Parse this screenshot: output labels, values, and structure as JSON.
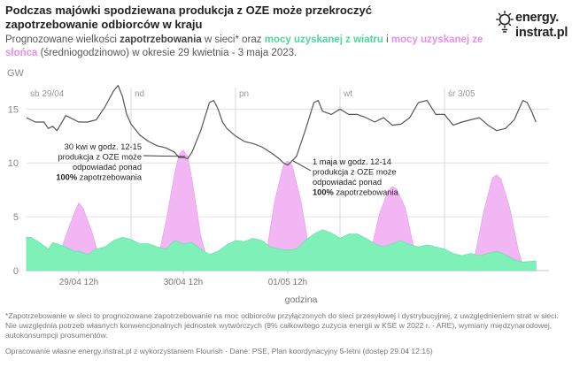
{
  "header": {
    "title": "Podczas majówki spodziewana produkcja z OZE może przekroczyć zapotrzebowanie odbiorców w kraju",
    "subtitle_1": "Prognozowane wielkości ",
    "subtitle_demand": "zapotrzebowania",
    "subtitle_2": " w sieci* oraz ",
    "subtitle_wind": "mocy uzyskanej z wiatru",
    "subtitle_3": " i ",
    "subtitle_solar": "mocy uzyskanej ze słońca",
    "subtitle_4": " (średniogodzinowo) w okresie 29 kwietnia - 3 maja 2023."
  },
  "logo": {
    "line1": "energy.",
    "line2": "instrat.pl",
    "icon": "lightbulb-sun-icon"
  },
  "colors": {
    "wind": "#7ef0b8",
    "solar": "#f3b6f5",
    "demand": "#555555",
    "grid": "#e0e0e0",
    "divider": "#d8d8d8"
  },
  "chart_data": {
    "type": "area",
    "ylabel": "GW",
    "xlabel": "godzina",
    "ylim": [
      0,
      17
    ],
    "y_ticks": [
      0,
      5,
      10,
      15
    ],
    "x_tick_labels": [
      {
        "label": "29/04 12h",
        "hour": 12
      },
      {
        "label": "30/04 12h",
        "hour": 36
      },
      {
        "label": "01/05 12h",
        "hour": 60
      }
    ],
    "day_labels": [
      {
        "label": "sb 29/04",
        "hour": 0
      },
      {
        "label": "nd",
        "hour": 24
      },
      {
        "label": "pn",
        "hour": 48
      },
      {
        "label": "wt",
        "hour": 72
      },
      {
        "label": "śr 3/05",
        "hour": 96
      }
    ],
    "hours_total": 120,
    "demand": {
      "name": "zapotrzebowanie",
      "points": [
        [
          0,
          14.2
        ],
        [
          2,
          13.8
        ],
        [
          4,
          13.8
        ],
        [
          5,
          13.2
        ],
        [
          6,
          13.4
        ],
        [
          7,
          13.0
        ],
        [
          9,
          14.4
        ],
        [
          10,
          14.2
        ],
        [
          12,
          13.8
        ],
        [
          14,
          13.8
        ],
        [
          16,
          14.0
        ],
        [
          18,
          15.2
        ],
        [
          20,
          16.7
        ],
        [
          21,
          17.2
        ],
        [
          22,
          16.2
        ],
        [
          23,
          14.5
        ],
        [
          24,
          13.6
        ],
        [
          26,
          12.6
        ],
        [
          28,
          12.0
        ],
        [
          30,
          11.6
        ],
        [
          32,
          11.4
        ],
        [
          34,
          11.0
        ],
        [
          35,
          10.5
        ],
        [
          36,
          10.5
        ],
        [
          37,
          10.4
        ],
        [
          38,
          11.0
        ],
        [
          40,
          13.0
        ],
        [
          42,
          15.6
        ],
        [
          43,
          15.8
        ],
        [
          44,
          15.0
        ],
        [
          45,
          13.8
        ],
        [
          46,
          13.2
        ],
        [
          48,
          12.5
        ],
        [
          50,
          12.0
        ],
        [
          52,
          11.8
        ],
        [
          54,
          11.5
        ],
        [
          56,
          11.0
        ],
        [
          58,
          10.4
        ],
        [
          59,
          10.0
        ],
        [
          60,
          9.8
        ],
        [
          62,
          10.6
        ],
        [
          64,
          13.0
        ],
        [
          66,
          15.6
        ],
        [
          67,
          15.8
        ],
        [
          68,
          14.8
        ],
        [
          70,
          14.5
        ],
        [
          72,
          15.0
        ],
        [
          74,
          14.5
        ],
        [
          76,
          14.5
        ],
        [
          78,
          14.2
        ],
        [
          80,
          13.8
        ],
        [
          82,
          14.2
        ],
        [
          84,
          13.5
        ],
        [
          86,
          13.6
        ],
        [
          88,
          14.2
        ],
        [
          90,
          15.6
        ],
        [
          92,
          15.8
        ],
        [
          94,
          14.5
        ],
        [
          96,
          14.5
        ],
        [
          98,
          13.5
        ],
        [
          100,
          13.8
        ],
        [
          102,
          14.0
        ],
        [
          104,
          14.2
        ],
        [
          106,
          13.5
        ],
        [
          108,
          13.0
        ],
        [
          110,
          13.2
        ],
        [
          112,
          14.0
        ],
        [
          114,
          15.8
        ],
        [
          115,
          15.6
        ],
        [
          116,
          14.8
        ],
        [
          117,
          13.8
        ]
      ]
    },
    "wind": {
      "name": "moc z wiatru",
      "points": [
        [
          0,
          3.1
        ],
        [
          1,
          3.1
        ],
        [
          3,
          2.6
        ],
        [
          5,
          2.0
        ],
        [
          6,
          2.6
        ],
        [
          7,
          2.5
        ],
        [
          9,
          2.2
        ],
        [
          11,
          1.8
        ],
        [
          12,
          1.8
        ],
        [
          14,
          1.5
        ],
        [
          16,
          2.0
        ],
        [
          18,
          2.2
        ],
        [
          20,
          2.8
        ],
        [
          22,
          3.1
        ],
        [
          24,
          2.9
        ],
        [
          26,
          2.5
        ],
        [
          28,
          2.5
        ],
        [
          30,
          2.2
        ],
        [
          32,
          2.0
        ],
        [
          34,
          2.8
        ],
        [
          36,
          2.5
        ],
        [
          38,
          2.6
        ],
        [
          40,
          2.0
        ],
        [
          42,
          1.5
        ],
        [
          44,
          1.8
        ],
        [
          46,
          2.4
        ],
        [
          48,
          2.8
        ],
        [
          50,
          2.7
        ],
        [
          52,
          3.0
        ],
        [
          54,
          2.8
        ],
        [
          56,
          2.2
        ],
        [
          58,
          2.0
        ],
        [
          60,
          1.9
        ],
        [
          62,
          2.0
        ],
        [
          64,
          2.8
        ],
        [
          66,
          3.4
        ],
        [
          68,
          3.8
        ],
        [
          70,
          3.5
        ],
        [
          72,
          3.0
        ],
        [
          74,
          3.4
        ],
        [
          76,
          3.4
        ],
        [
          78,
          3.0
        ],
        [
          80,
          2.5
        ],
        [
          82,
          2.2
        ],
        [
          84,
          2.5
        ],
        [
          86,
          2.8
        ],
        [
          88,
          2.4
        ],
        [
          90,
          2.2
        ],
        [
          92,
          2.4
        ],
        [
          94,
          2.2
        ],
        [
          96,
          2.0
        ],
        [
          98,
          1.6
        ],
        [
          100,
          1.4
        ],
        [
          102,
          1.6
        ],
        [
          104,
          1.4
        ],
        [
          106,
          1.6
        ],
        [
          108,
          1.8
        ],
        [
          110,
          1.5
        ],
        [
          112,
          1.0
        ],
        [
          114,
          0.8
        ],
        [
          117,
          0.9
        ]
      ]
    },
    "solar": {
      "name": "moc ze słońca",
      "points": [
        [
          0,
          0
        ],
        [
          5,
          0
        ],
        [
          7,
          0.8
        ],
        [
          9,
          3.2
        ],
        [
          11,
          5.4
        ],
        [
          12,
          6.3
        ],
        [
          13,
          5.8
        ],
        [
          15,
          3.6
        ],
        [
          17,
          0.8
        ],
        [
          19,
          0
        ],
        [
          29,
          0
        ],
        [
          30,
          0.8
        ],
        [
          32,
          4.5
        ],
        [
          34,
          9.0
        ],
        [
          35,
          10.8
        ],
        [
          36,
          11.2
        ],
        [
          37,
          10.6
        ],
        [
          38,
          8.5
        ],
        [
          40,
          3.2
        ],
        [
          42,
          0.3
        ],
        [
          43,
          0
        ],
        [
          53,
          0
        ],
        [
          55,
          1.4
        ],
        [
          57,
          6.5
        ],
        [
          59,
          9.8
        ],
        [
          60,
          10.2
        ],
        [
          61,
          9.8
        ],
        [
          63,
          6.5
        ],
        [
          65,
          1.8
        ],
        [
          66,
          0
        ],
        [
          77,
          0
        ],
        [
          79,
          1.6
        ],
        [
          81,
          5.2
        ],
        [
          83,
          7.4
        ],
        [
          84,
          7.8
        ],
        [
          85,
          7.6
        ],
        [
          87,
          5.8
        ],
        [
          89,
          2.0
        ],
        [
          90,
          0
        ],
        [
          101,
          0
        ],
        [
          103,
          1.4
        ],
        [
          105,
          5.5
        ],
        [
          107,
          8.6
        ],
        [
          108,
          8.9
        ],
        [
          109,
          8.5
        ],
        [
          111,
          5.8
        ],
        [
          113,
          1.8
        ],
        [
          114,
          0.5
        ],
        [
          116,
          0
        ],
        [
          117,
          0
        ]
      ]
    },
    "annotations": [
      {
        "line1": "30 kwi w godz. 12-15",
        "line2": "produkcja z OZE może",
        "line3": "odpowiadać ponad",
        "bold": "100%",
        "line4_rest": " zapotrzebowania",
        "target_hour": 36.5,
        "target_value": 10.6
      },
      {
        "line1": "1 maja w godz. 12-14",
        "line2": "produkcja z OZE może",
        "line3": "odpowiadać ponad",
        "bold": "100%",
        "line4_rest": " zapotrzebowania",
        "target_hour": 61.2,
        "target_value": 10.2
      }
    ]
  },
  "footnote": "*Zapotrzebowanie w sieci to prognozowane zapotrzebowanie na moc odbiorców przyłączonych do sieci przesyłowej i dystrybucyjnej, z uwzględnieniem strat w sieci. Nie uwzględnia potrzeb własnych konwencjonalnych jednostek wytwórczych (8% całkowitego zużycia energii w KSE w 2022 r. - ARE), wymiany międzynarodowej, autokonsumpcji prosumentów.",
  "source": "Opracowanie własne energy.instrat.pl z wykorzystaniem Flourish · Dane: PSE, Plan koordynacyjny 5-letni (dostęp 29.04 12:15)"
}
